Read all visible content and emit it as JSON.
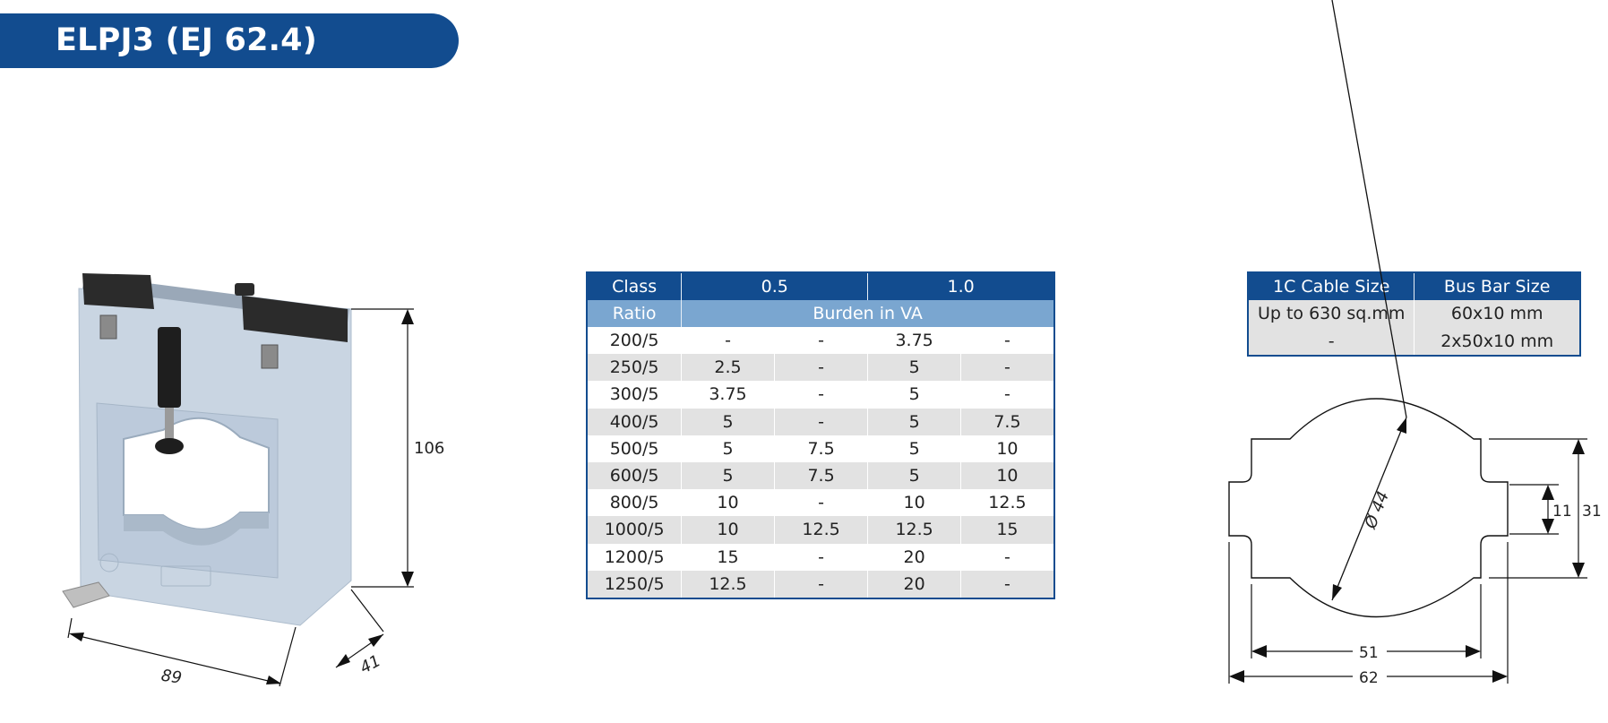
{
  "header": {
    "title": "ELPJ3 (EJ 62.4)"
  },
  "ratio_table": {
    "headers": {
      "class": "Class",
      "class_a": "0.5",
      "class_b": "1.0",
      "ratio": "Ratio",
      "burden": "Burden in VA"
    },
    "rows": [
      [
        "200/5",
        "-",
        "-",
        "3.75",
        "-"
      ],
      [
        "250/5",
        "2.5",
        "-",
        "5",
        "-"
      ],
      [
        "300/5",
        "3.75",
        "-",
        "5",
        "-"
      ],
      [
        "400/5",
        "5",
        "-",
        "5",
        "7.5"
      ],
      [
        "500/5",
        "5",
        "7.5",
        "5",
        "10"
      ],
      [
        "600/5",
        "5",
        "7.5",
        "5",
        "10"
      ],
      [
        "800/5",
        "10",
        "-",
        "10",
        "12.5"
      ],
      [
        "1000/5",
        "10",
        "12.5",
        "12.5",
        "15"
      ],
      [
        "1200/5",
        "15",
        "-",
        "20",
        "-"
      ],
      [
        "1250/5",
        "12.5",
        "-",
        "20",
        "-"
      ]
    ]
  },
  "cable_table": {
    "headers": {
      "cable": "1C Cable Size",
      "busbar": "Bus Bar Size"
    },
    "rows": [
      [
        "Up to 630 sq.mm",
        "60x10 mm"
      ],
      [
        "-",
        "2x50x10 mm"
      ]
    ]
  },
  "product_drawing": {
    "dim_height": "106",
    "dim_width": "89",
    "dim_depth": "41"
  },
  "aperture_drawing": {
    "dim_diameter": "Ø 44",
    "dim_inner_height": "11",
    "dim_outer_height": "31",
    "dim_inner_width": "51",
    "dim_outer_width": "62"
  },
  "colors": {
    "brand_blue": "#124c8f",
    "sub_header_blue": "#7aa6d0",
    "row_grey": "#e2e2e2",
    "housing": "#c7d3e0"
  }
}
